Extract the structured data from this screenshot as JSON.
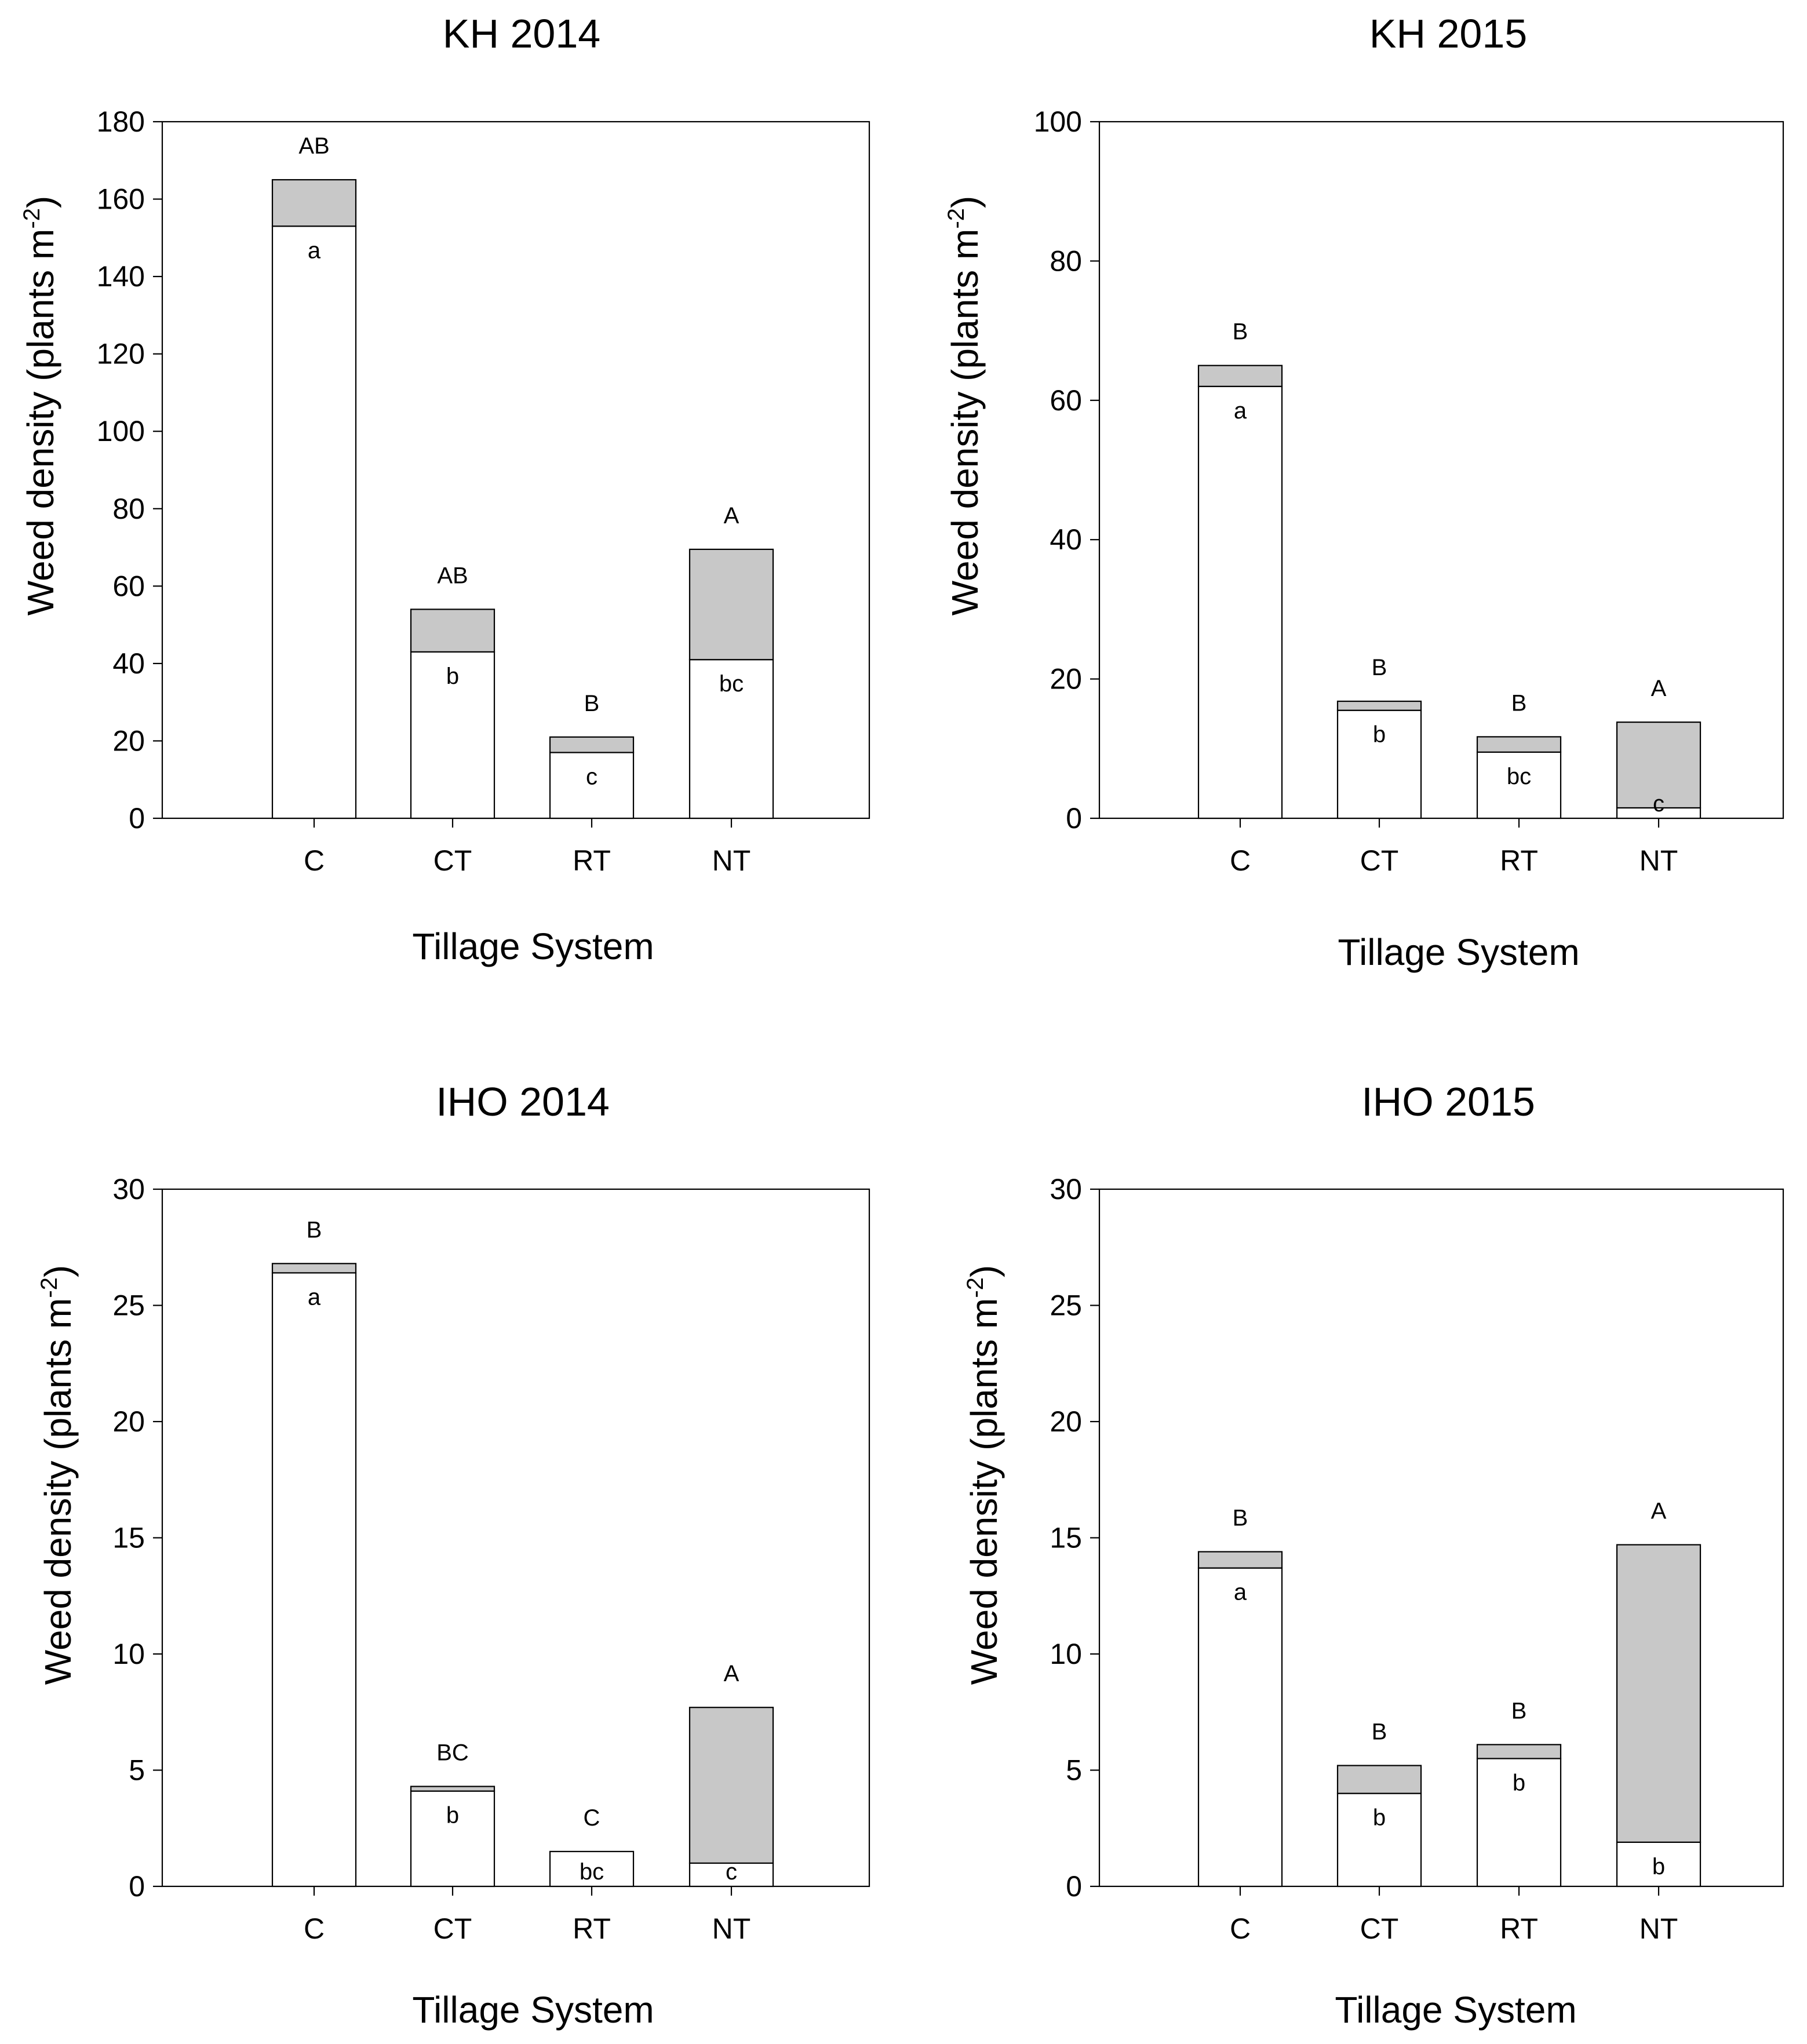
{
  "chart_data": [
    {
      "type": "bar",
      "stacked": true,
      "title": "KH 2014",
      "xlabel": "Tillage System",
      "ylabel_main": "Weed density (plants m",
      "ylabel_sup": "-2",
      "ylabel_close": ")",
      "categories": [
        "C",
        "CT",
        "RT",
        "NT"
      ],
      "ylim": [
        0,
        180
      ],
      "yticks": [
        "0",
        "20",
        "40",
        "60",
        "80",
        "100",
        "120",
        "140",
        "160",
        "180"
      ],
      "series": [
        {
          "color": "#ffffff",
          "values": [
            153,
            43,
            17,
            41
          ]
        },
        {
          "color": "#c8c8c8",
          "values": [
            12,
            11,
            4,
            28.5
          ]
        }
      ],
      "lower_letters": [
        "a",
        "b",
        "c",
        "bc"
      ],
      "upper_letters": [
        "AB",
        "AB",
        "B",
        "A"
      ]
    },
    {
      "type": "bar",
      "stacked": true,
      "title": "KH 2015",
      "xlabel": "Tillage System",
      "ylabel_main": "Weed density (plants m",
      "ylabel_sup": "-2",
      "ylabel_close": ")",
      "categories": [
        "C",
        "CT",
        "RT",
        "NT"
      ],
      "ylim": [
        0,
        100
      ],
      "yticks": [
        "0",
        "20",
        "40",
        "60",
        "80",
        "100"
      ],
      "series": [
        {
          "color": "#ffffff",
          "values": [
            62,
            15.5,
            9.5,
            1.5
          ]
        },
        {
          "color": "#c8c8c8",
          "values": [
            3,
            1.3,
            2.2,
            12.3
          ]
        }
      ],
      "lower_letters": [
        "a",
        "b",
        "bc",
        "c"
      ],
      "upper_letters": [
        "B",
        "B",
        "B",
        "A"
      ]
    },
    {
      "type": "bar",
      "stacked": true,
      "title": "IHO 2014",
      "xlabel": "Tillage System",
      "ylabel_main": "Weed density (plants m",
      "ylabel_sup": "-2",
      "ylabel_close": ")",
      "categories": [
        "C",
        "CT",
        "RT",
        "NT"
      ],
      "ylim": [
        0,
        30
      ],
      "yticks": [
        "0",
        "5",
        "10",
        "15",
        "20",
        "25",
        "30"
      ],
      "series": [
        {
          "color": "#ffffff",
          "values": [
            26.4,
            4.1,
            1.5,
            1.0
          ]
        },
        {
          "color": "#c8c8c8",
          "values": [
            0.4,
            0.2,
            0,
            6.7
          ]
        }
      ],
      "lower_letters": [
        "a",
        "b",
        "bc",
        "c"
      ],
      "upper_letters": [
        "B",
        "BC",
        "C",
        "A"
      ]
    },
    {
      "type": "bar",
      "stacked": true,
      "title": "IHO 2015",
      "xlabel": "Tillage System",
      "ylabel_main": "Weed density (plants m",
      "ylabel_sup": "-2",
      "ylabel_close": ")",
      "categories": [
        "C",
        "CT",
        "RT",
        "NT"
      ],
      "ylim": [
        0,
        30
      ],
      "yticks": [
        "0",
        "5",
        "10",
        "15",
        "20",
        "25",
        "30"
      ],
      "series": [
        {
          "color": "#ffffff",
          "values": [
            13.7,
            4.0,
            5.5,
            1.9
          ]
        },
        {
          "color": "#c8c8c8",
          "values": [
            0.7,
            1.2,
            0.6,
            12.8
          ]
        }
      ],
      "lower_letters": [
        "a",
        "b",
        "b",
        "b"
      ],
      "upper_letters": [
        "B",
        "B",
        "B",
        "A"
      ]
    }
  ]
}
